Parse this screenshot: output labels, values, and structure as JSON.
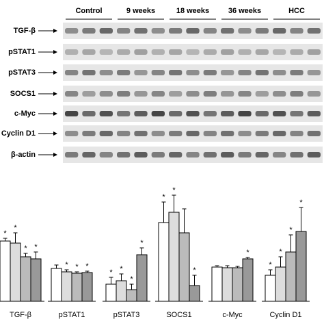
{
  "blot": {
    "groups": [
      "Control",
      "9 weeks",
      "18 weeks",
      "36 weeks",
      "HCC"
    ],
    "rows": [
      "TGF-β",
      "pSTAT1",
      "pSTAT3",
      "SOCS1",
      "c-Myc",
      "Cyclin D1",
      "β-actin"
    ]
  },
  "chart_data": {
    "type": "bar",
    "categories": [
      "TGF-β",
      "pSTAT1",
      "pSTAT3",
      "SOCS1",
      "c-Myc",
      "Cyclin D1"
    ],
    "ylim": [
      0,
      200
    ],
    "series": [
      {
        "color": "#ffffff",
        "values": [
          88,
          48,
          25,
          115,
          50,
          38
        ],
        "errors": [
          4,
          5,
          10,
          30,
          2,
          8
        ],
        "annotations": [
          "*",
          null,
          "*",
          "*",
          null,
          "*"
        ]
      },
      {
        "color": "#dddddd",
        "values": [
          85,
          43,
          30,
          130,
          49,
          50
        ],
        "errors": [
          15,
          3,
          10,
          25,
          3,
          15
        ],
        "annotations": [
          "*",
          "*",
          "*",
          "*",
          null,
          "*"
        ]
      },
      {
        "color": "#bbbbbb",
        "values": [
          65,
          41,
          17,
          100,
          49,
          72
        ],
        "errors": [
          5,
          2,
          8,
          35,
          2,
          25
        ],
        "annotations": [
          "*",
          "*",
          "*",
          null,
          null,
          "*"
        ]
      },
      {
        "color": "#999999",
        "values": [
          62,
          42,
          68,
          23,
          62,
          102
        ],
        "errors": [
          10,
          2,
          10,
          15,
          2,
          35
        ],
        "annotations": [
          "*",
          "*",
          "*",
          "*",
          "*",
          "*"
        ]
      }
    ]
  }
}
